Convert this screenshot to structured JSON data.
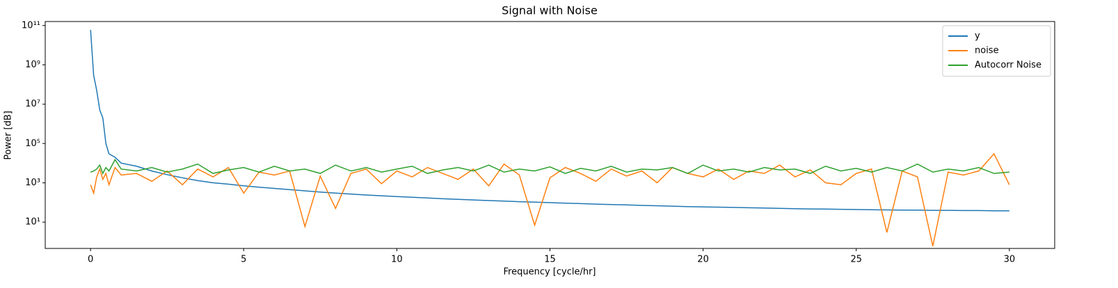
{
  "chart_data": {
    "type": "line",
    "title": "Signal with Noise",
    "x_label": "Frequency [cycle/hr]",
    "y_label": "Power [dB]",
    "y_scale": "log",
    "legend": "upper right",
    "xlim": [
      -1.48,
      31.48
    ],
    "ylim": [
      0.46,
      160000000000
    ],
    "xticks": [
      0,
      5,
      10,
      15,
      20,
      25,
      30
    ],
    "yticks": [
      {
        "value": 10,
        "label": "10¹"
      },
      {
        "value": 1000,
        "label": "10³"
      },
      {
        "value": 100000,
        "label": "10⁵"
      },
      {
        "value": 10000000,
        "label": "10⁷"
      },
      {
        "value": 1000000000,
        "label": "10⁹"
      },
      {
        "value": 100000000000,
        "label": "10¹¹"
      }
    ],
    "x": [
      0,
      0.1,
      0.2,
      0.3,
      0.4,
      0.5,
      0.6,
      0.8,
      1,
      1.5,
      2,
      2.5,
      3,
      3.5,
      4,
      4.5,
      5,
      5.5,
      6,
      6.5,
      7,
      7.5,
      8,
      8.5,
      9,
      9.5,
      10,
      10.5,
      11,
      11.5,
      12,
      12.5,
      13,
      13.5,
      14,
      14.5,
      15,
      15.5,
      16,
      16.5,
      17,
      17.5,
      18,
      18.5,
      19,
      19.5,
      20,
      20.5,
      21,
      21.5,
      22,
      22.5,
      23,
      23.5,
      24,
      24.5,
      25,
      25.5,
      26,
      26.5,
      27,
      27.5,
      28,
      28.5,
      29,
      29.5,
      30
    ],
    "series": [
      {
        "name": "y",
        "color": "#1f77b4",
        "values": [
          60000000000,
          300000000,
          50000000,
          5000000,
          2000000,
          100000,
          30000,
          20000,
          10000,
          7000,
          4000,
          2600,
          1800,
          1300,
          1000,
          850,
          700,
          600,
          520,
          450,
          390,
          340,
          300,
          270,
          240,
          220,
          200,
          185,
          170,
          155,
          145,
          135,
          125,
          117,
          110,
          104,
          98,
          93,
          88,
          83,
          79,
          75,
          71,
          68,
          65,
          62,
          60,
          58,
          56,
          54,
          52,
          50,
          48,
          47,
          46,
          45,
          44,
          43,
          42,
          41,
          41,
          40,
          40,
          39,
          39,
          38,
          38
        ]
      },
      {
        "name": "noise",
        "color": "#ff7f0e",
        "values": [
          800,
          300,
          2000,
          5000,
          1500,
          3000,
          800,
          6000,
          2500,
          3000,
          1200,
          4000,
          800,
          5000,
          2000,
          6000,
          300,
          3500,
          2500,
          4000,
          6,
          2200,
          50,
          3000,
          5000,
          900,
          4000,
          2000,
          6000,
          3000,
          1500,
          5000,
          700,
          9000,
          2500,
          7,
          1800,
          6000,
          3000,
          1200,
          5000,
          2200,
          4000,
          1000,
          6000,
          3000,
          2000,
          5000,
          1500,
          4000,
          3000,
          8000,
          2000,
          4500,
          1000,
          800,
          3000,
          5000,
          3,
          4000,
          2000,
          0.6,
          3500,
          2500,
          4000,
          30000,
          800
        ]
      },
      {
        "name": "Autocorr Noise",
        "color": "#2ca02c",
        "values": [
          3500,
          4000,
          5000,
          8000,
          3000,
          6000,
          4000,
          15000,
          5000,
          4000,
          6000,
          3500,
          5000,
          9000,
          3000,
          4500,
          6000,
          3500,
          7000,
          4000,
          5000,
          3000,
          8000,
          4000,
          6000,
          3500,
          5000,
          7000,
          3000,
          4500,
          6000,
          4000,
          8000,
          3500,
          5000,
          4000,
          6500,
          3000,
          5500,
          4000,
          7000,
          3500,
          5000,
          4500,
          6000,
          3000,
          8000,
          4000,
          5000,
          3500,
          6000,
          4500,
          5000,
          3000,
          7000,
          4000,
          5500,
          3500,
          6000,
          4000,
          9000,
          3500,
          5000,
          4000,
          6000,
          3000,
          3500
        ]
      }
    ]
  }
}
